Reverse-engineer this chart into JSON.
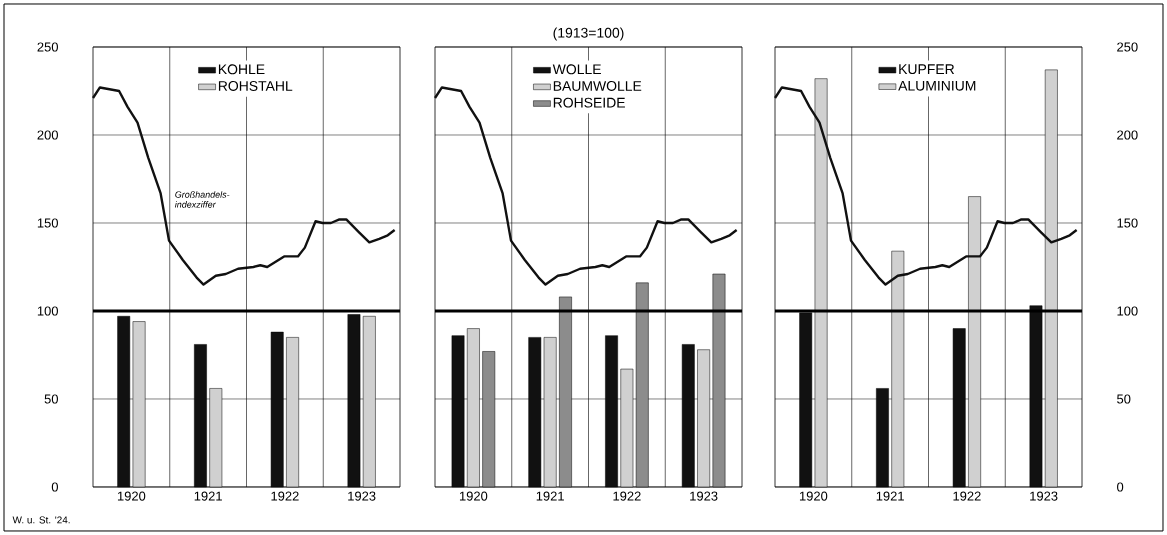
{
  "chart_data": [
    {
      "type": "bar",
      "xlim": [
        1920,
        1924
      ],
      "ylim": [
        0,
        250
      ],
      "xticks": [
        {
          "value": 1920.5,
          "label": "1920"
        },
        {
          "value": 1921.5,
          "label": "1921"
        },
        {
          "value": 1922.5,
          "label": "1922"
        },
        {
          "value": 1923.5,
          "label": "1923"
        }
      ],
      "yticks": [
        0,
        50,
        100,
        150,
        200,
        250
      ],
      "grid": "y",
      "legend": "top",
      "ref_lines": [
        {
          "axis": "x",
          "value": 1921,
          "color": "#000000"
        },
        {
          "axis": "x",
          "value": 1922,
          "color": "#000000"
        },
        {
          "axis": "x",
          "value": 1923,
          "color": "#000000"
        },
        {
          "axis": "y",
          "value": 100,
          "color": "#000000"
        }
      ],
      "annotations": [
        {
          "text": "Großhandels-indexziffer",
          "x": 1921.05,
          "y": 158
        },
        "W. u. St. '24."
      ],
      "series": [
        {
          "name": "KOHLE",
          "color": "#111111",
          "x": [
            1920.5,
            1921.5,
            1922.5,
            1923.5
          ],
          "values": [
            97,
            81,
            88,
            98
          ]
        },
        {
          "name": "ROHSTAHL",
          "color": "#d0d0d0",
          "x": [
            1920.5,
            1921.5,
            1922.5,
            1923.5
          ],
          "values": [
            94,
            56,
            85,
            97
          ]
        },
        {
          "type": "line",
          "color": "#111111",
          "x": [
            1920.0,
            1920.09,
            1920.34,
            1920.45,
            1920.58,
            1920.72,
            1920.88,
            1920.99,
            1921.17,
            1921.35,
            1921.44,
            1921.6,
            1921.73,
            1921.89,
            1922.09,
            1922.18,
            1922.27,
            1922.49,
            1922.67,
            1922.76,
            1922.9,
            1922.99,
            1923.1,
            1923.21,
            1923.3,
            1923.46,
            1923.6,
            1923.73,
            1923.84,
            1923.93
          ],
          "values": [
            221,
            227,
            225,
            216,
            207,
            187,
            167,
            140,
            129,
            119,
            115,
            120,
            121,
            124,
            125,
            126,
            125,
            131,
            131,
            136,
            151,
            150,
            150,
            152,
            152,
            145,
            139,
            141,
            143,
            146
          ]
        }
      ]
    },
    {
      "type": "bar",
      "title": "(1913=100)",
      "xlim": [
        1920,
        1924
      ],
      "ylim": [
        0,
        250
      ],
      "xticks": [
        {
          "value": 1920.5,
          "label": "1920"
        },
        {
          "value": 1921.5,
          "label": "1921"
        },
        {
          "value": 1922.5,
          "label": "1922"
        },
        {
          "value": 1923.5,
          "label": "1923"
        }
      ],
      "yticks": [
        0,
        50,
        100,
        150,
        200,
        250
      ],
      "grid": "y",
      "legend": "top",
      "tick_labels": "x",
      "ref_lines": [
        {
          "axis": "x",
          "value": 1921,
          "color": "#000000"
        },
        {
          "axis": "x",
          "value": 1922,
          "color": "#000000"
        },
        {
          "axis": "x",
          "value": 1923,
          "color": "#000000"
        },
        {
          "axis": "y",
          "value": 100,
          "color": "#000000"
        }
      ],
      "series": [
        {
          "name": "WOLLE",
          "color": "#111111",
          "x": [
            1920.5,
            1921.5,
            1922.5,
            1923.5
          ],
          "values": [
            86,
            85,
            86,
            81
          ]
        },
        {
          "name": "BAUMWOLLE",
          "color": "#d0d0d0",
          "x": [
            1920.5,
            1921.5,
            1922.5,
            1923.5
          ],
          "values": [
            90,
            85,
            67,
            78
          ]
        },
        {
          "name": "ROHSEIDE",
          "color": "#8c8c8c",
          "x": [
            1920.5,
            1921.5,
            1922.5,
            1923.5
          ],
          "values": [
            77,
            108,
            116,
            121
          ]
        },
        {
          "type": "line",
          "color": "#111111",
          "x": [
            1920.0,
            1920.09,
            1920.34,
            1920.45,
            1920.58,
            1920.72,
            1920.88,
            1920.99,
            1921.17,
            1921.35,
            1921.44,
            1921.6,
            1921.73,
            1921.89,
            1922.09,
            1922.18,
            1922.27,
            1922.49,
            1922.67,
            1922.76,
            1922.9,
            1922.99,
            1923.1,
            1923.21,
            1923.3,
            1923.46,
            1923.6,
            1923.73,
            1923.84,
            1923.93
          ],
          "values": [
            221,
            227,
            225,
            216,
            207,
            187,
            167,
            140,
            129,
            119,
            115,
            120,
            121,
            124,
            125,
            126,
            125,
            131,
            131,
            136,
            151,
            150,
            150,
            152,
            152,
            145,
            139,
            141,
            143,
            146
          ]
        }
      ]
    },
    {
      "type": "bar",
      "xlim": [
        1920,
        1924
      ],
      "ylim": [
        0,
        250
      ],
      "xticks": [
        {
          "value": 1920.5,
          "label": "1920"
        },
        {
          "value": 1921.5,
          "label": "1921"
        },
        {
          "value": 1922.5,
          "label": "1922"
        },
        {
          "value": 1923.5,
          "label": "1923"
        }
      ],
      "yticks": [
        0,
        50,
        100,
        150,
        200,
        250
      ],
      "grid": "y",
      "legend": "top",
      "ref_lines": [
        {
          "axis": "x",
          "value": 1921,
          "color": "#000000"
        },
        {
          "axis": "x",
          "value": 1922,
          "color": "#000000"
        },
        {
          "axis": "x",
          "value": 1923,
          "color": "#000000"
        },
        {
          "axis": "y",
          "value": 100,
          "color": "#000000"
        }
      ],
      "series": [
        {
          "name": "KUPFER",
          "color": "#111111",
          "x": [
            1920.5,
            1921.5,
            1922.5,
            1923.5
          ],
          "values": [
            99,
            56,
            90,
            103
          ]
        },
        {
          "name": "ALUMINIUM",
          "color": "#d0d0d0",
          "x": [
            1920.5,
            1921.5,
            1922.5,
            1923.5
          ],
          "values": [
            232,
            134,
            165,
            237
          ]
        },
        {
          "type": "line",
          "color": "#111111",
          "x": [
            1920.0,
            1920.09,
            1920.34,
            1920.45,
            1920.58,
            1920.72,
            1920.88,
            1920.99,
            1921.17,
            1921.35,
            1921.44,
            1921.6,
            1921.73,
            1921.89,
            1922.09,
            1922.18,
            1922.27,
            1922.49,
            1922.67,
            1922.76,
            1922.9,
            1922.99,
            1923.1,
            1923.21,
            1923.3,
            1923.46,
            1923.6,
            1923.73,
            1923.84,
            1923.93
          ],
          "values": [
            221,
            227,
            225,
            216,
            207,
            187,
            167,
            140,
            129,
            119,
            115,
            120,
            121,
            124,
            125,
            126,
            125,
            131,
            131,
            136,
            151,
            150,
            150,
            152,
            152,
            145,
            139,
            141,
            143,
            146
          ]
        }
      ]
    }
  ]
}
